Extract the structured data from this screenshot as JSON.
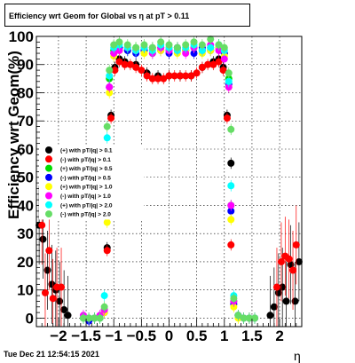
{
  "title": "Efficiency wrt Geom for Global vs   η at pT > 0.11",
  "footer": "Tue Dec 21 12:54:15 2021",
  "chart_data": {
    "type": "scatter",
    "xlabel": "η",
    "ylabel": "Efficiency wrt Geom(%)",
    "xlim": [
      -2.4,
      2.4
    ],
    "ylim": [
      -3,
      100
    ],
    "grid": true,
    "legend_position": "left",
    "x_ticks": [
      "−2",
      "−1.5",
      "−1",
      "−0.5",
      "0",
      "0.5",
      "1",
      "1.5",
      "2"
    ],
    "y_ticks": [
      "0",
      "10",
      "20",
      "30",
      "40",
      "50",
      "60",
      "70",
      "80",
      "90",
      "100"
    ],
    "series": [
      {
        "name": "(+) with pT/|q| > 0.1",
        "color": "#000000",
        "x": [
          -2.35,
          -2.28,
          -2.2,
          -2.12,
          -2.05,
          -1.98,
          -1.9,
          -1.83,
          -1.12,
          -1.05,
          -0.98,
          -0.9,
          -0.8,
          -0.6,
          -0.4,
          -0.2,
          0,
          0.2,
          0.4,
          0.6,
          0.8,
          0.9,
          0.98,
          1.05,
          1.12,
          1.83,
          1.9,
          1.98,
          2.05,
          2.12,
          2.2,
          2.28,
          2.35
        ],
        "y": [
          33,
          28,
          17,
          12,
          10,
          6,
          3,
          1,
          25,
          72,
          89,
          92,
          91,
          90,
          87,
          86,
          86,
          86,
          86,
          89,
          91,
          92,
          89,
          72,
          55,
          1,
          4,
          9,
          11,
          6,
          19,
          6,
          20
        ]
      },
      {
        "name": "(-) with pT/|q| > 0.1",
        "color": "#ff0000",
        "x": [
          -2.3,
          -2.24,
          -2.17,
          -2.1,
          -2.03,
          -1.95,
          -1.12,
          -1.05,
          -0.98,
          -0.9,
          -0.8,
          -0.7,
          -0.6,
          -0.5,
          -0.4,
          -0.3,
          -0.2,
          -0.1,
          0,
          0.1,
          0.2,
          0.3,
          0.4,
          0.5,
          0.6,
          0.7,
          0.8,
          0.9,
          0.98,
          1.05,
          1.12,
          1.95,
          2.03,
          2.1,
          2.17,
          2.24,
          2.3
        ],
        "y": [
          33,
          9,
          24,
          7,
          11,
          11,
          24,
          71,
          88,
          91,
          90,
          90,
          89,
          88,
          86,
          85,
          85,
          85,
          86,
          86,
          86,
          86,
          86,
          87,
          89,
          90,
          90,
          91,
          88,
          71,
          26,
          11,
          20,
          22,
          21,
          17,
          26
        ]
      },
      {
        "name": "(+) with pT/|q| > 0.5",
        "color": "#00dd00",
        "x": [
          -1.55,
          -1.45,
          -1.35,
          -1.25,
          -1.17,
          -1.12,
          -1.08,
          -1.0,
          -0.9,
          -0.75,
          -0.6,
          -0.45,
          -0.3,
          -0.15,
          0,
          0.15,
          0.3,
          0.45,
          0.6,
          0.75,
          0.9,
          1.0,
          1.08,
          1.12,
          1.17,
          1.25,
          1.35,
          1.45,
          1.55
        ],
        "y": [
          0,
          0,
          0,
          0,
          3,
          40,
          85,
          95,
          96,
          95,
          96,
          95,
          94,
          96,
          95,
          96,
          95,
          96,
          95,
          96,
          97,
          94,
          85,
          40,
          6,
          1,
          0,
          0,
          0
        ]
      },
      {
        "name": "(-) with pT/|q| > 0.5",
        "color": "#0000ff",
        "x": [
          -1.55,
          -1.45,
          -1.35,
          -1.25,
          -1.17,
          -1.12,
          -1.08,
          -1.0,
          -0.9,
          -0.75,
          -0.6,
          -0.45,
          -0.3,
          -0.15,
          0,
          0.15,
          0.3,
          0.45,
          0.6,
          0.75,
          0.9,
          1.0,
          1.08,
          1.12,
          1.17,
          1.25,
          1.35,
          1.45,
          1.55
        ],
        "y": [
          0,
          -1,
          0,
          0,
          2,
          36,
          82,
          94,
          96,
          95,
          94,
          95,
          96,
          95,
          94,
          96,
          95,
          94,
          96,
          95,
          96,
          94,
          83,
          38,
          5,
          1,
          0,
          0,
          0
        ]
      },
      {
        "name": "(+) with pT/|q| > 1.0",
        "color": "#ffff00",
        "x": [
          -1.55,
          -1.45,
          -1.35,
          -1.25,
          -1.17,
          -1.12,
          -1.08,
          -1.0,
          -0.9,
          -0.75,
          -0.6,
          -0.45,
          -0.3,
          -0.15,
          0,
          0.15,
          0.3,
          0.45,
          0.6,
          0.75,
          0.9,
          1.0,
          1.08,
          1.12,
          1.17,
          1.25,
          1.35,
          1.45,
          1.55
        ],
        "y": [
          0,
          0,
          0,
          0,
          2,
          34,
          80,
          93,
          95,
          96,
          95,
          94,
          96,
          95,
          96,
          94,
          95,
          96,
          94,
          95,
          96,
          93,
          82,
          35,
          4,
          0,
          0,
          0,
          0
        ]
      },
      {
        "name": "(-) with pT/|q| > 1.0",
        "color": "#ff00ff",
        "x": [
          -1.55,
          -1.45,
          -1.35,
          -1.25,
          -1.17,
          -1.12,
          -1.08,
          -1.0,
          -0.9,
          -0.75,
          -0.6,
          -0.45,
          -0.3,
          -0.15,
          0,
          0.15,
          0.3,
          0.45,
          0.6,
          0.75,
          0.9,
          1.0,
          1.08,
          1.12,
          1.17,
          1.25,
          1.35,
          1.45,
          1.55
        ],
        "y": [
          1,
          0,
          0,
          1,
          3,
          45,
          82,
          94,
          95,
          96,
          95,
          96,
          94,
          96,
          95,
          95,
          94,
          96,
          95,
          97,
          95,
          92,
          82,
          40,
          6,
          1,
          0,
          0,
          0
        ]
      },
      {
        "name": "(+) with pT/|q| > 2.0",
        "color": "#00ffff",
        "x": [
          -1.55,
          -1.45,
          -1.35,
          -1.25,
          -1.17,
          -1.12,
          -1.08,
          -1.0,
          -0.9,
          -0.75,
          -0.6,
          -0.45,
          -0.3,
          -0.15,
          0,
          0.15,
          0.3,
          0.45,
          0.6,
          0.75,
          0.9,
          1.0,
          1.08,
          1.12,
          1.17,
          1.25,
          1.35,
          1.45,
          1.55
        ],
        "y": [
          0,
          0,
          0,
          0,
          8,
          64,
          86,
          96,
          97,
          96,
          95,
          96,
          95,
          97,
          96,
          95,
          96,
          97,
          95,
          96,
          97,
          95,
          84,
          47,
          8,
          1,
          0,
          0,
          0
        ]
      },
      {
        "name": "(-) with pT/|q| > 2.0",
        "color": "#66dd66",
        "x": [
          -1.55,
          -1.45,
          -1.35,
          -1.25,
          -1.17,
          -1.12,
          -1.08,
          -1.0,
          -0.9,
          -0.75,
          -0.6,
          -0.45,
          -0.3,
          -0.15,
          0,
          0.15,
          0.3,
          0.45,
          0.6,
          0.75,
          0.9,
          1.0,
          1.08,
          1.12,
          1.17,
          1.25,
          1.35,
          1.45,
          1.55
        ],
        "y": [
          0,
          0,
          0,
          0,
          4,
          68,
          88,
          97,
          98,
          97,
          96,
          97,
          96,
          98,
          97,
          96,
          97,
          98,
          97,
          99,
          97,
          96,
          87,
          67,
          7,
          1,
          0,
          0,
          0
        ]
      }
    ]
  }
}
